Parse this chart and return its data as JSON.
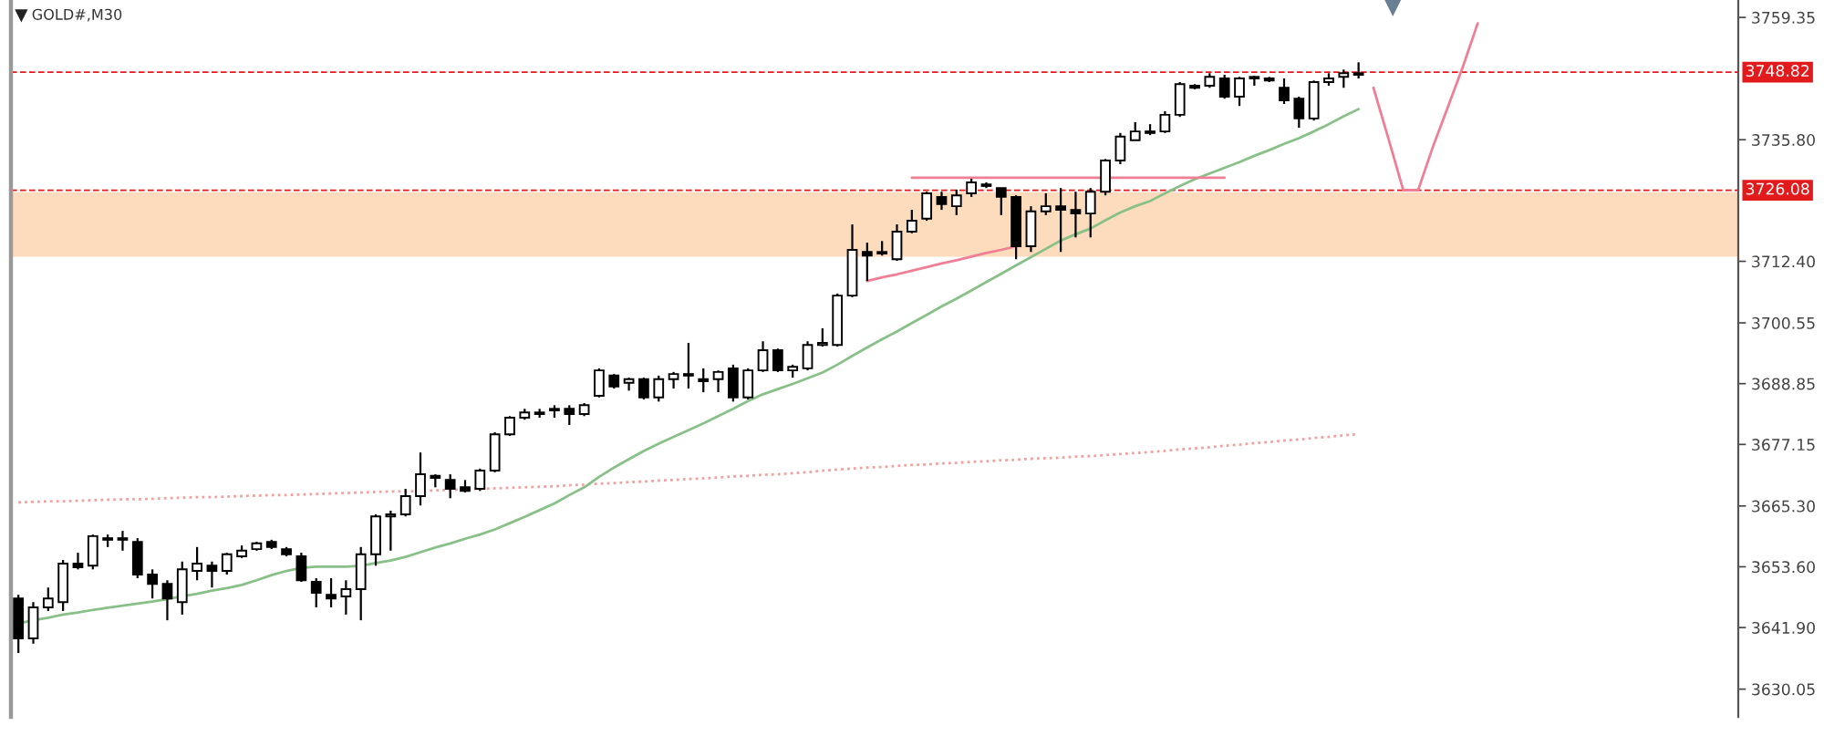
{
  "chart_data": {
    "type": "candlestick",
    "title": "GOLD#,M30",
    "categories": [
      null,
      null,
      null,
      null,
      null,
      null,
      null,
      null,
      null,
      null,
      null,
      null,
      null,
      null,
      null,
      null,
      null,
      null,
      null,
      null,
      null,
      null,
      null,
      null,
      null,
      null,
      null,
      null,
      null,
      null,
      null,
      null,
      null,
      null,
      null,
      null,
      null,
      null,
      null,
      null,
      null,
      null,
      null,
      null,
      null,
      null,
      null,
      null,
      null,
      null,
      null,
      null,
      null,
      null,
      null,
      null,
      null,
      null,
      null,
      null,
      null,
      null,
      null,
      null,
      null,
      null,
      null,
      null,
      null,
      null,
      null,
      null,
      null,
      null,
      null,
      null,
      null,
      null,
      null,
      null,
      null,
      null,
      null,
      null,
      null,
      null,
      null,
      null,
      null,
      null,
      null,
      null,
      null,
      null,
      null,
      null,
      null,
      null,
      null,
      null,
      null,
      null,
      null,
      null,
      null,
      null,
      null,
      null,
      null,
      null,
      null,
      null,
      null,
      null,
      null,
      null
    ],
    "ohlc": [
      [
        3647.5,
        3648.2,
        3637.0,
        3639.8
      ],
      [
        3639.8,
        3646.8,
        3638.8,
        3645.8
      ],
      [
        3645.8,
        3649.6,
        3645.1,
        3647.5
      ],
      [
        3646.8,
        3654.9,
        3645.1,
        3654.2
      ],
      [
        3654.2,
        3656.3,
        3653.1,
        3653.5
      ],
      [
        3653.8,
        3659.8,
        3653.1,
        3659.5
      ],
      [
        3659.1,
        3659.8,
        3657.4,
        3658.8
      ],
      [
        3658.8,
        3660.5,
        3656.7,
        3659.1
      ],
      [
        3658.4,
        3659.1,
        3651.4,
        3652.1
      ],
      [
        3652.1,
        3653.1,
        3647.5,
        3650.3
      ],
      [
        3650.3,
        3651.0,
        3643.3,
        3647.5
      ],
      [
        3646.8,
        3654.6,
        3644.4,
        3653.1
      ],
      [
        3652.8,
        3657.4,
        3651.0,
        3654.2
      ],
      [
        3653.8,
        3654.6,
        3649.6,
        3652.8
      ],
      [
        3652.8,
        3656.3,
        3652.1,
        3656.0
      ],
      [
        3655.6,
        3657.7,
        3655.3,
        3656.7
      ],
      [
        3657.0,
        3658.4,
        3656.7,
        3658.1
      ],
      [
        3658.4,
        3658.8,
        3657.0,
        3657.4
      ],
      [
        3657.0,
        3657.4,
        3655.6,
        3656.0
      ],
      [
        3655.6,
        3656.3,
        3650.7,
        3651.0
      ],
      [
        3650.7,
        3651.4,
        3645.8,
        3648.6
      ],
      [
        3648.2,
        3651.4,
        3645.8,
        3647.5
      ],
      [
        3647.9,
        3651.0,
        3644.4,
        3649.3
      ],
      [
        3649.3,
        3657.4,
        3643.3,
        3656.0
      ],
      [
        3656.0,
        3663.7,
        3653.8,
        3663.3
      ],
      [
        3663.3,
        3664.4,
        3656.7,
        3663.7
      ],
      [
        3663.7,
        3668.6,
        3663.3,
        3667.2
      ],
      [
        3667.2,
        3675.6,
        3665.4,
        3671.4
      ],
      [
        3671.1,
        3671.4,
        3668.9,
        3670.7
      ],
      [
        3670.3,
        3671.4,
        3666.8,
        3668.6
      ],
      [
        3668.9,
        3670.3,
        3667.9,
        3668.2
      ],
      [
        3668.6,
        3672.5,
        3668.2,
        3672.1
      ],
      [
        3672.1,
        3679.5,
        3671.8,
        3679.1
      ],
      [
        3679.1,
        3682.6,
        3678.8,
        3682.3
      ],
      [
        3682.3,
        3684.0,
        3681.9,
        3683.3
      ],
      [
        3683.0,
        3684.0,
        3682.3,
        3683.3
      ],
      [
        3683.7,
        3684.7,
        3682.3,
        3684.0
      ],
      [
        3684.0,
        3684.7,
        3680.9,
        3683.0
      ],
      [
        3683.0,
        3685.1,
        3682.6,
        3684.7
      ],
      [
        3686.5,
        3691.8,
        3686.2,
        3691.4
      ],
      [
        3690.4,
        3690.7,
        3687.9,
        3688.3
      ],
      [
        3689.0,
        3690.0,
        3687.5,
        3689.7
      ],
      [
        3689.7,
        3690.0,
        3685.8,
        3686.2
      ],
      [
        3686.2,
        3690.4,
        3685.4,
        3689.7
      ],
      [
        3689.7,
        3691.1,
        3687.9,
        3690.7
      ],
      [
        3690.7,
        3696.7,
        3687.9,
        3690.4
      ],
      [
        3689.7,
        3691.8,
        3687.2,
        3689.3
      ],
      [
        3689.7,
        3691.4,
        3687.2,
        3691.1
      ],
      [
        3691.8,
        3692.5,
        3685.4,
        3686.2
      ],
      [
        3686.2,
        3691.8,
        3685.8,
        3691.4
      ],
      [
        3691.4,
        3697.0,
        3691.1,
        3695.3
      ],
      [
        3695.3,
        3695.6,
        3691.1,
        3691.4
      ],
      [
        3691.4,
        3692.5,
        3690.0,
        3692.1
      ],
      [
        3691.8,
        3697.0,
        3691.4,
        3696.3
      ],
      [
        3696.3,
        3699.5,
        3696.0,
        3696.7
      ],
      [
        3696.3,
        3706.2,
        3696.0,
        3705.8
      ],
      [
        3705.8,
        3719.5,
        3705.5,
        3714.6
      ],
      [
        3714.2,
        3716.0,
        3708.6,
        3713.5
      ],
      [
        3714.2,
        3716.3,
        3713.5,
        3713.9
      ],
      [
        3712.8,
        3719.5,
        3712.5,
        3718.1
      ],
      [
        3718.1,
        3722.3,
        3717.8,
        3720.2
      ],
      [
        3720.6,
        3725.8,
        3720.2,
        3725.5
      ],
      [
        3724.8,
        3725.8,
        3722.3,
        3723.4
      ],
      [
        3723.0,
        3726.2,
        3721.3,
        3725.1
      ],
      [
        3725.5,
        3728.3,
        3724.8,
        3727.6
      ],
      [
        3727.2,
        3727.6,
        3726.5,
        3726.9
      ],
      [
        3726.5,
        3726.5,
        3721.3,
        3724.8
      ],
      [
        3724.8,
        3725.1,
        3712.8,
        3715.3
      ],
      [
        3715.3,
        3723.0,
        3714.2,
        3722.0
      ],
      [
        3722.0,
        3725.5,
        3721.3,
        3723.0
      ],
      [
        3723.0,
        3726.5,
        3714.2,
        3722.3
      ],
      [
        3722.3,
        3725.8,
        3717.0,
        3721.6
      ],
      [
        3721.6,
        3726.5,
        3717.0,
        3725.8
      ],
      [
        3725.8,
        3732.1,
        3725.1,
        3731.8
      ],
      [
        3731.8,
        3737.1,
        3731.1,
        3736.4
      ],
      [
        3735.7,
        3739.2,
        3735.7,
        3737.4
      ],
      [
        3737.1,
        3738.8,
        3736.7,
        3737.4
      ],
      [
        3737.4,
        3741.3,
        3737.1,
        3740.6
      ],
      [
        3740.6,
        3746.9,
        3740.2,
        3746.5
      ],
      [
        3746.2,
        3746.5,
        3745.5,
        3745.8
      ],
      [
        3746.2,
        3748.6,
        3745.8,
        3747.9
      ],
      [
        3747.6,
        3748.3,
        3743.7,
        3744.1
      ],
      [
        3744.1,
        3747.9,
        3742.3,
        3747.6
      ],
      [
        3747.6,
        3748.1,
        3746.2,
        3747.9
      ],
      [
        3747.6,
        3747.9,
        3746.9,
        3747.2
      ],
      [
        3745.8,
        3747.6,
        3742.7,
        3743.4
      ],
      [
        3743.7,
        3744.1,
        3738.1,
        3739.9
      ],
      [
        3739.9,
        3747.2,
        3739.5,
        3746.9
      ],
      [
        3746.9,
        3748.6,
        3746.2,
        3747.6
      ],
      [
        3747.9,
        3749.3,
        3745.8,
        3748.6
      ],
      [
        3748.6,
        3750.7,
        3747.6,
        3748.3
      ],
      null,
      null,
      null,
      null,
      null,
      null,
      null,
      null,
      null,
      null,
      null,
      null,
      null,
      null,
      null,
      null,
      null,
      null,
      null,
      null,
      null,
      null,
      null,
      null,
      null
    ],
    "colors": [
      "#000000",
      "#ffffff",
      "#ffffff",
      "#ffffff",
      "#000000",
      "#ffffff",
      "#000000",
      "#ffffff",
      "#000000",
      "#000000",
      "#000000",
      "#ffffff",
      "#ffffff",
      "#000000",
      "#ffffff",
      "#ffffff",
      "#ffffff",
      "#000000",
      "#000000",
      "#000000",
      "#000000",
      "#000000",
      "#ffffff",
      "#ffffff",
      "#ffffff",
      "#ffffff",
      "#ffffff",
      "#ffffff",
      "#000000",
      "#000000",
      "#000000",
      "#ffffff",
      "#ffffff",
      "#ffffff",
      "#ffffff",
      "#ffffff",
      "#ffffff",
      "#000000",
      "#ffffff",
      "#ffffff",
      "#000000",
      "#ffffff",
      "#000000",
      "#ffffff",
      "#ffffff",
      "#000000",
      "#000000",
      "#ffffff",
      "#000000",
      "#ffffff",
      "#ffffff",
      "#000000",
      "#ffffff",
      "#ffffff",
      "#ffffff",
      "#ffffff",
      "#ffffff",
      "#000000",
      "#000000",
      "#ffffff",
      "#ffffff",
      "#ffffff",
      "#000000",
      "#ffffff",
      "#ffffff",
      "#000000",
      "#000000",
      "#000000",
      "#ffffff",
      "#ffffff",
      "#000000",
      "#000000",
      "#ffffff",
      "#ffffff",
      "#ffffff",
      "#ffffff",
      "#ffffff",
      "#ffffff",
      "#ffffff",
      "#000000",
      "#ffffff",
      "#000000",
      "#ffffff",
      "#ffffff",
      "#000000",
      "#000000",
      "#000000",
      "#ffffff",
      "#ffffff",
      "#ffffff",
      "#000000",
      null,
      null,
      null,
      null,
      null,
      null,
      null,
      null,
      null,
      null,
      null,
      null,
      null,
      null,
      null,
      null,
      null,
      null,
      null,
      null,
      null,
      null,
      null,
      null,
      null
    ],
    "series": [
      {
        "type": "line",
        "color": "#f2a0a0",
        "line_style": "dotted",
        "values": [
          3666.0,
          3666.1,
          3666.2,
          3666.2,
          3666.3,
          3666.4,
          3666.5,
          3666.6,
          3666.6,
          3666.7,
          3666.8,
          3666.9,
          3667.0,
          3667.0,
          3667.1,
          3667.2,
          3667.3,
          3667.4,
          3667.4,
          3667.5,
          3667.6,
          3667.7,
          3667.8,
          3667.9,
          3668.0,
          3668.1,
          3668.1,
          3668.2,
          3668.3,
          3668.4,
          3668.5,
          3668.6,
          3668.7,
          3668.8,
          3668.9,
          3669.0,
          3669.1,
          3669.3,
          3669.4,
          3669.6,
          3669.7,
          3669.9,
          3670.0,
          3670.2,
          3670.3,
          3670.5,
          3670.6,
          3670.8,
          3671.0,
          3671.1,
          3671.3,
          3671.4,
          3671.6,
          3671.8,
          3672.1,
          3672.3,
          3672.5,
          3672.7,
          3672.8,
          3673.0,
          3673.2,
          3673.3,
          3673.5,
          3673.6,
          3673.8,
          3673.9,
          3674.1,
          3674.2,
          3674.4,
          3674.5,
          3674.6,
          3674.8,
          3674.9,
          3675.1,
          3675.3,
          3675.5,
          3675.7,
          3675.9,
          3676.2,
          3676.4,
          3676.6,
          3676.9,
          3677.1,
          3677.4,
          3677.6,
          3677.9,
          3678.1,
          3678.4,
          3678.6,
          3678.9,
          3679.1,
          null,
          null,
          null,
          null,
          null,
          null,
          null,
          null,
          null,
          null,
          null,
          null,
          null,
          null,
          null,
          null,
          null,
          null,
          null,
          null,
          null,
          null,
          null,
          null,
          null
        ]
      },
      {
        "type": "line",
        "color": "#88c088",
        "values": [
          3642.7,
          3643.3,
          3643.8,
          3644.4,
          3644.8,
          3645.3,
          3645.7,
          3646.1,
          3646.5,
          3646.9,
          3647.4,
          3647.9,
          3648.4,
          3649.0,
          3649.5,
          3650.1,
          3651.0,
          3652.0,
          3652.8,
          3653.4,
          3653.6,
          3653.6,
          3653.6,
          3653.8,
          3654.3,
          3654.8,
          3655.5,
          3656.4,
          3657.3,
          3658.1,
          3659.0,
          3659.8,
          3660.8,
          3662.0,
          3663.2,
          3664.5,
          3665.8,
          3667.4,
          3668.9,
          3670.9,
          3672.7,
          3674.3,
          3675.9,
          3677.3,
          3678.6,
          3679.9,
          3681.2,
          3682.6,
          3684.0,
          3685.5,
          3686.8,
          3687.8,
          3688.8,
          3689.9,
          3691.0,
          3692.5,
          3694.2,
          3695.8,
          3697.4,
          3698.9,
          3700.5,
          3702.1,
          3703.7,
          3705.2,
          3706.8,
          3708.4,
          3710.0,
          3711.6,
          3713.2,
          3714.8,
          3716.4,
          3717.6,
          3718.7,
          3720.3,
          3721.8,
          3723.0,
          3724.0,
          3725.5,
          3726.9,
          3728.2,
          3729.3,
          3730.4,
          3731.5,
          3732.7,
          3733.8,
          3735.0,
          3736.1,
          3737.4,
          3738.8,
          3740.3,
          3741.7,
          null,
          null,
          null,
          null,
          null,
          null,
          null,
          null,
          null,
          null,
          null,
          null,
          null,
          null,
          null,
          null,
          null,
          null,
          null,
          null,
          null,
          null,
          null,
          null,
          null
        ]
      },
      {
        "type": "line",
        "color": "#ee7f95",
        "values": [
          null,
          null,
          null,
          null,
          null,
          null,
          null,
          null,
          null,
          null,
          null,
          null,
          null,
          null,
          null,
          null,
          null,
          null,
          null,
          null,
          null,
          null,
          null,
          null,
          null,
          null,
          null,
          null,
          null,
          null,
          null,
          null,
          null,
          null,
          null,
          null,
          null,
          null,
          null,
          null,
          null,
          null,
          null,
          null,
          null,
          null,
          null,
          null,
          null,
          null,
          null,
          null,
          null,
          null,
          null,
          null,
          null,
          null,
          null,
          null,
          3728.5,
          3728.5,
          3728.5,
          3728.5,
          3728.5,
          3728.5,
          3728.5,
          3728.5,
          3728.5,
          3728.5,
          3728.5,
          3728.5,
          3728.5,
          3728.5,
          3728.5,
          3728.5,
          3728.5,
          3728.5,
          3728.5,
          3728.5,
          3728.5,
          3728.5,
          null,
          null,
          null,
          null,
          null,
          null,
          null,
          null,
          null,
          null,
          null,
          null,
          null,
          null,
          null,
          null,
          null,
          null,
          null,
          null,
          null,
          null,
          null,
          null,
          null,
          null,
          null,
          null,
          null,
          null,
          null,
          null,
          null,
          null
        ]
      },
      {
        "type": "line",
        "color": "#ee7f95",
        "values": [
          null,
          null,
          null,
          null,
          null,
          null,
          null,
          null,
          null,
          null,
          null,
          null,
          null,
          null,
          null,
          null,
          null,
          null,
          null,
          null,
          null,
          null,
          null,
          null,
          null,
          null,
          null,
          null,
          null,
          null,
          null,
          null,
          null,
          null,
          null,
          null,
          null,
          null,
          null,
          null,
          null,
          null,
          null,
          null,
          null,
          null,
          null,
          null,
          null,
          null,
          null,
          null,
          null,
          null,
          null,
          null,
          null,
          3708.6,
          3709.3,
          3709.9,
          3710.6,
          3711.3,
          3712.0,
          3712.6,
          3713.3,
          3714.0,
          3714.6,
          3715.3,
          null,
          null,
          null,
          null,
          null,
          null,
          null,
          null,
          null,
          null,
          null,
          null,
          null,
          null,
          null,
          null,
          null,
          null,
          null,
          null,
          null,
          null,
          null,
          null,
          null,
          null,
          null,
          null,
          null,
          null,
          null,
          null,
          null,
          null,
          null,
          null,
          null,
          null,
          null,
          null,
          null,
          null,
          null,
          null,
          null,
          null,
          null,
          null
        ]
      },
      {
        "type": "line",
        "color": "#ee7f95",
        "values": [
          null,
          null,
          null,
          null,
          null,
          null,
          null,
          null,
          null,
          null,
          null,
          null,
          null,
          null,
          null,
          null,
          null,
          null,
          null,
          null,
          null,
          null,
          null,
          null,
          null,
          null,
          null,
          null,
          null,
          null,
          null,
          null,
          null,
          null,
          null,
          null,
          null,
          null,
          null,
          null,
          null,
          null,
          null,
          null,
          null,
          null,
          null,
          null,
          null,
          null,
          null,
          null,
          null,
          null,
          null,
          null,
          null,
          null,
          null,
          null,
          null,
          null,
          null,
          null,
          null,
          null,
          null,
          null,
          null,
          null,
          null,
          null,
          null,
          null,
          null,
          null,
          null,
          null,
          null,
          null,
          null,
          null,
          null,
          null,
          null,
          null,
          null,
          null,
          null,
          null,
          null,
          3745.8,
          3736.1,
          3726.1,
          3726.1,
          3734.5,
          3742.1,
          3749.8,
          3758.2,
          null,
          null,
          null,
          null,
          null,
          null,
          null,
          null,
          null,
          null,
          null,
          null,
          null,
          null,
          null,
          null,
          null
        ]
      }
    ],
    "bands": [
      {
        "axis": "y",
        "from": 3713.3,
        "to": 3725.7,
        "color": "#fcdcbc"
      }
    ],
    "ref_lines": [
      {
        "axis": "y",
        "value": 3748.82,
        "label": "3748.82",
        "color": "#e31a1c",
        "line_style": "dashed"
      },
      {
        "axis": "y",
        "value": 3726.08,
        "label": "3726.08",
        "color": "#e31a1c",
        "line_style": "dashed"
      }
    ],
    "ylim": [
      3624.7,
      3762.7
    ],
    "yticks": [
      3759.35,
      {
        "value": 3735.8,
        "label": "3735.80"
      },
      {
        "value": 3712.4,
        "label": "3712.40"
      },
      3700.55,
      3688.85,
      3677.15,
      {
        "value": 3665.3,
        "label": "3665.30"
      },
      {
        "value": 3653.6,
        "label": "3653.60"
      },
      {
        "value": 3641.9,
        "label": "3641.90"
      },
      3630.05
    ],
    "tick_labels": "y",
    "grid": false
  }
}
